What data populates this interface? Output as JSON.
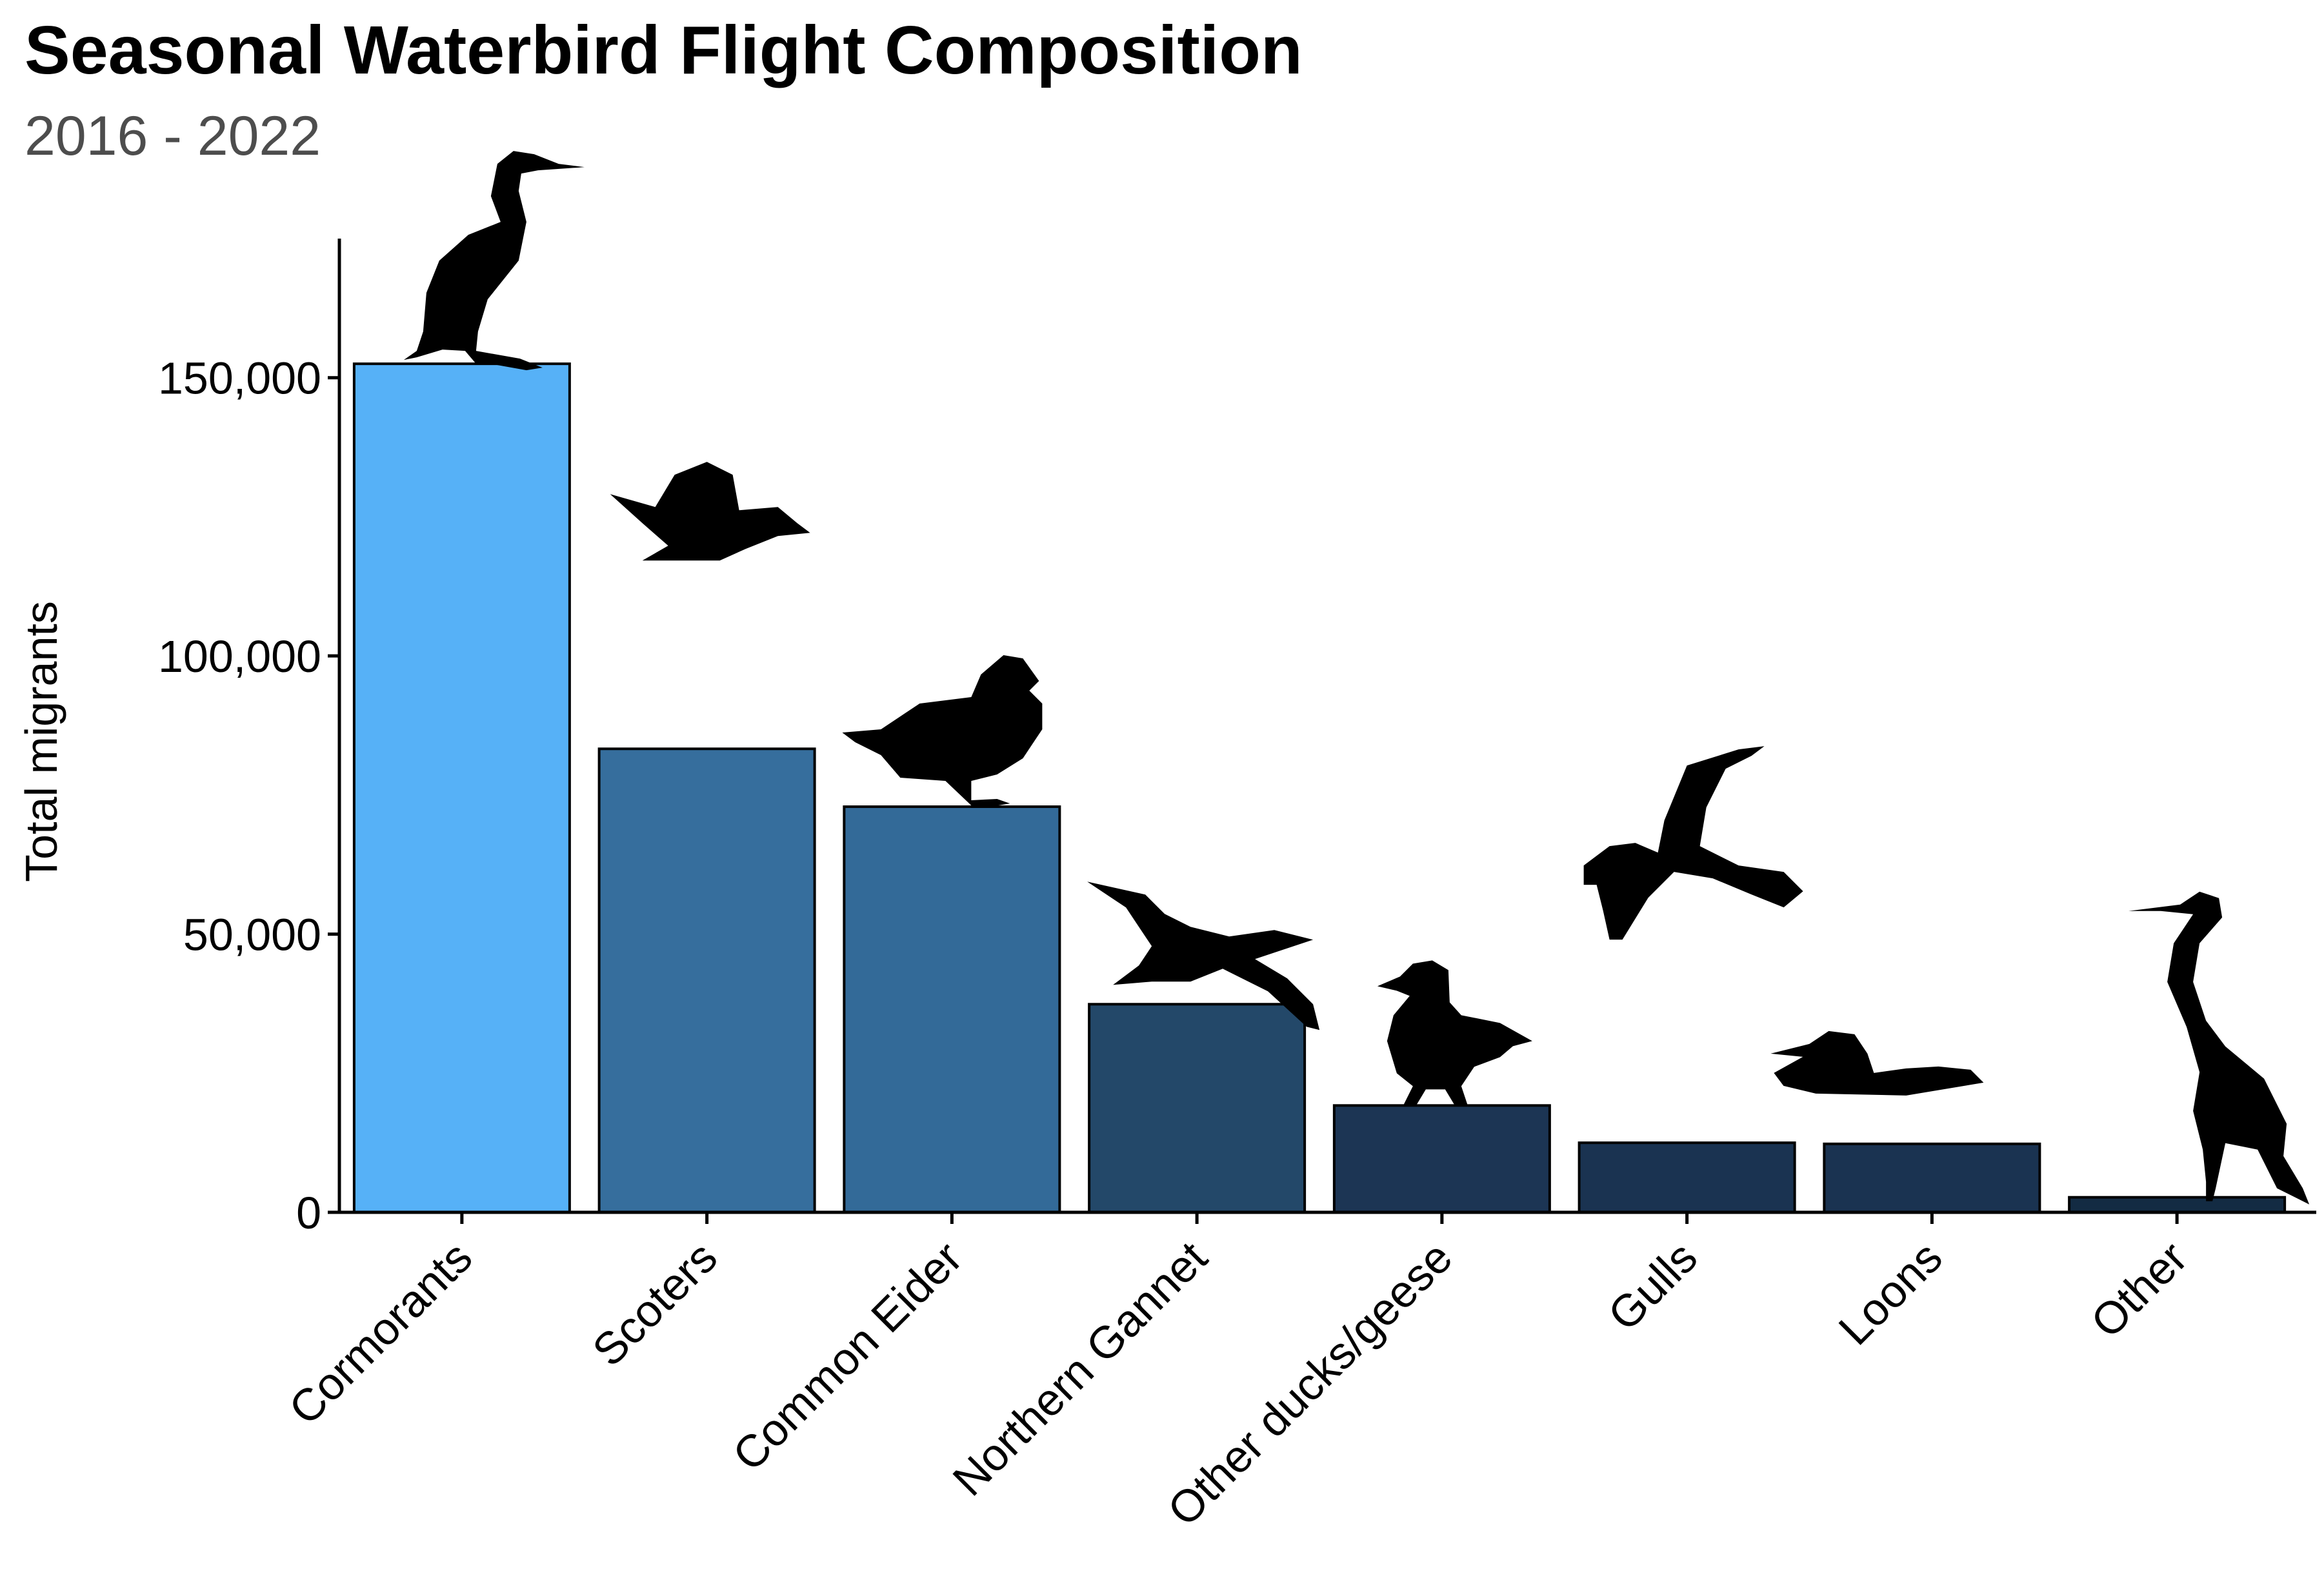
{
  "chart_data": {
    "type": "bar",
    "title": "Seasonal Waterbird Flight Composition",
    "subtitle": "2016 - 2022",
    "ylabel": "Total migrants",
    "xlabel": "",
    "ylim": [
      0,
      175000
    ],
    "yticks": [
      0,
      50000,
      100000,
      150000
    ],
    "ytick_labels": [
      "0",
      "50,000",
      "100,000",
      "150,000"
    ],
    "grid": false,
    "legend": "none",
    "categories": [
      "Cormorants",
      "Scoters",
      "Common Eider",
      "Northern Gannet",
      "Other ducks/geese",
      "Gulls",
      "Loons",
      "Other"
    ],
    "values": [
      152500,
      83300,
      72900,
      37400,
      19200,
      12500,
      12300,
      2700
    ],
    "colors": [
      "#56B1F7",
      "#366E9D",
      "#336A98",
      "#234869",
      "#1C3554",
      "#1A3351",
      "#1A3351",
      "#132B43"
    ],
    "icons": [
      "cormorant-silhouette",
      "scoter-silhouette",
      "eider-silhouette",
      "gannet-silhouette",
      "duck-silhouette",
      "gull-silhouette",
      "loon-silhouette",
      "heron-silhouette"
    ]
  }
}
